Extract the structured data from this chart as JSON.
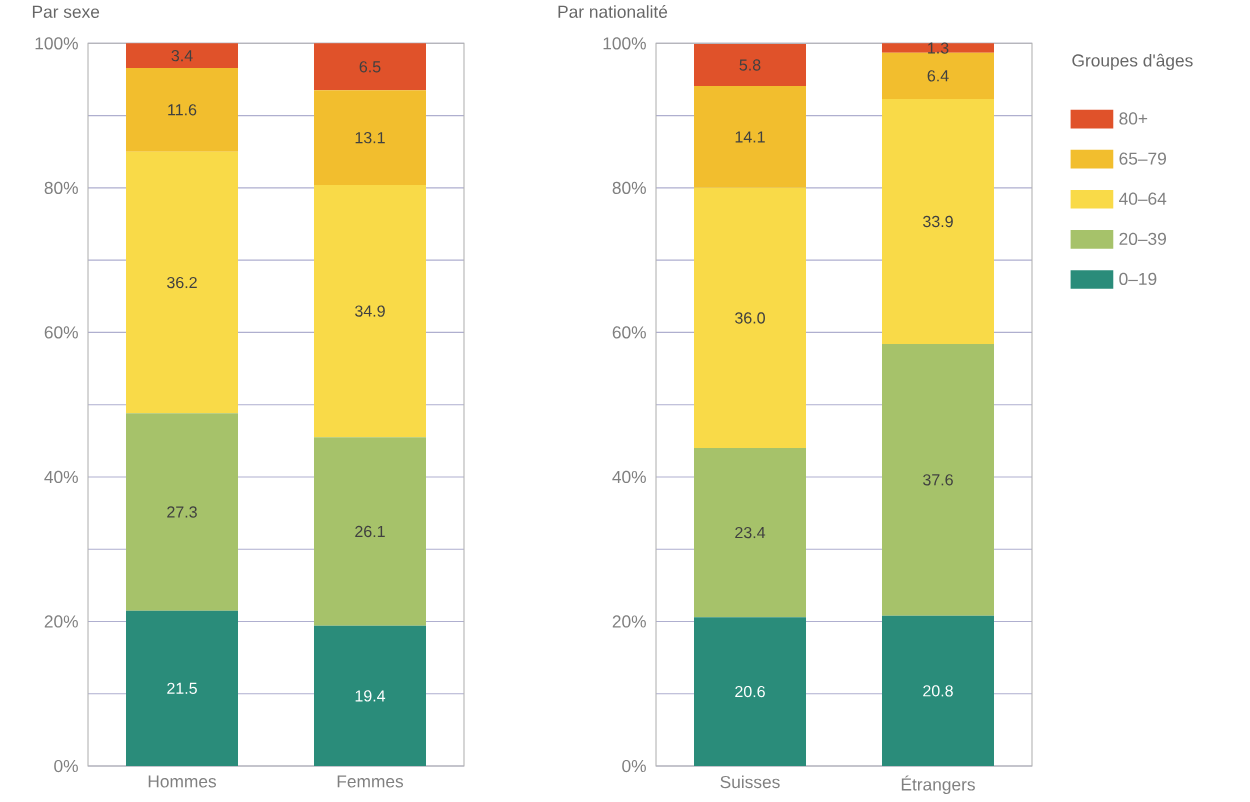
{
  "chart_data": [
    {
      "type": "bar",
      "stacked": true,
      "title": "Par sexe",
      "categories": [
        "Hommes",
        "Femmes"
      ],
      "series": [
        {
          "color": "#2a8c7a",
          "values": [
            21.5,
            19.4
          ]
        },
        {
          "color": "#a6c26a",
          "values": [
            27.3,
            26.1
          ]
        },
        {
          "color": "#f9da48",
          "values": [
            36.2,
            34.9
          ]
        },
        {
          "color": "#f2be2e",
          "values": [
            11.6,
            13.1
          ]
        },
        {
          "color": "#e0522a",
          "values": [
            3.4,
            6.5
          ]
        }
      ],
      "ylim": [
        0,
        100
      ],
      "yticks": [
        {
          "value": 0,
          "label": "0%"
        },
        {
          "value": 10,
          "label": null
        },
        {
          "value": 20,
          "label": "20%"
        },
        {
          "value": 30,
          "label": null
        },
        {
          "value": 40,
          "label": "40%"
        },
        {
          "value": 50,
          "label": null
        },
        {
          "value": 60,
          "label": "60%"
        },
        {
          "value": 70,
          "label": null
        },
        {
          "value": 80,
          "label": "80%"
        },
        {
          "value": 90,
          "label": null
        },
        {
          "value": 100,
          "label": "100%"
        }
      ],
      "grid": "y",
      "data_labels": true
    },
    {
      "type": "bar",
      "stacked": true,
      "title": "Par nationalité",
      "categories": [
        "Suisses",
        "Étrangers"
      ],
      "series": [
        {
          "name": "0–19",
          "color": "#2a8c7a",
          "values": [
            20.6,
            20.8
          ]
        },
        {
          "name": "20–39",
          "color": "#a6c26a",
          "values": [
            23.4,
            37.6
          ]
        },
        {
          "name": "40–64",
          "color": "#f9da48",
          "values": [
            36.0,
            33.9
          ],
          "value_labels": [
            "36.0",
            "33.9"
          ]
        },
        {
          "name": "65–79",
          "color": "#f2be2e",
          "values": [
            14.1,
            6.4
          ]
        },
        {
          "name": "80+",
          "color": "#e0522a",
          "values": [
            5.8,
            1.3
          ]
        }
      ],
      "ylim": [
        0,
        100
      ],
      "yticks": [
        {
          "value": 0,
          "label": "0%"
        },
        {
          "value": 10,
          "label": null
        },
        {
          "value": 20,
          "label": "20%"
        },
        {
          "value": 30,
          "label": null
        },
        {
          "value": 40,
          "label": "40%"
        },
        {
          "value": 50,
          "label": null
        },
        {
          "value": 60,
          "label": "60%"
        },
        {
          "value": 70,
          "label": null
        },
        {
          "value": 80,
          "label": "80%"
        },
        {
          "value": 90,
          "label": null
        },
        {
          "value": 100,
          "label": "100%"
        }
      ],
      "grid": "y",
      "data_labels": true,
      "legend": "right",
      "legend_title": "Groupes d'âges"
    }
  ]
}
